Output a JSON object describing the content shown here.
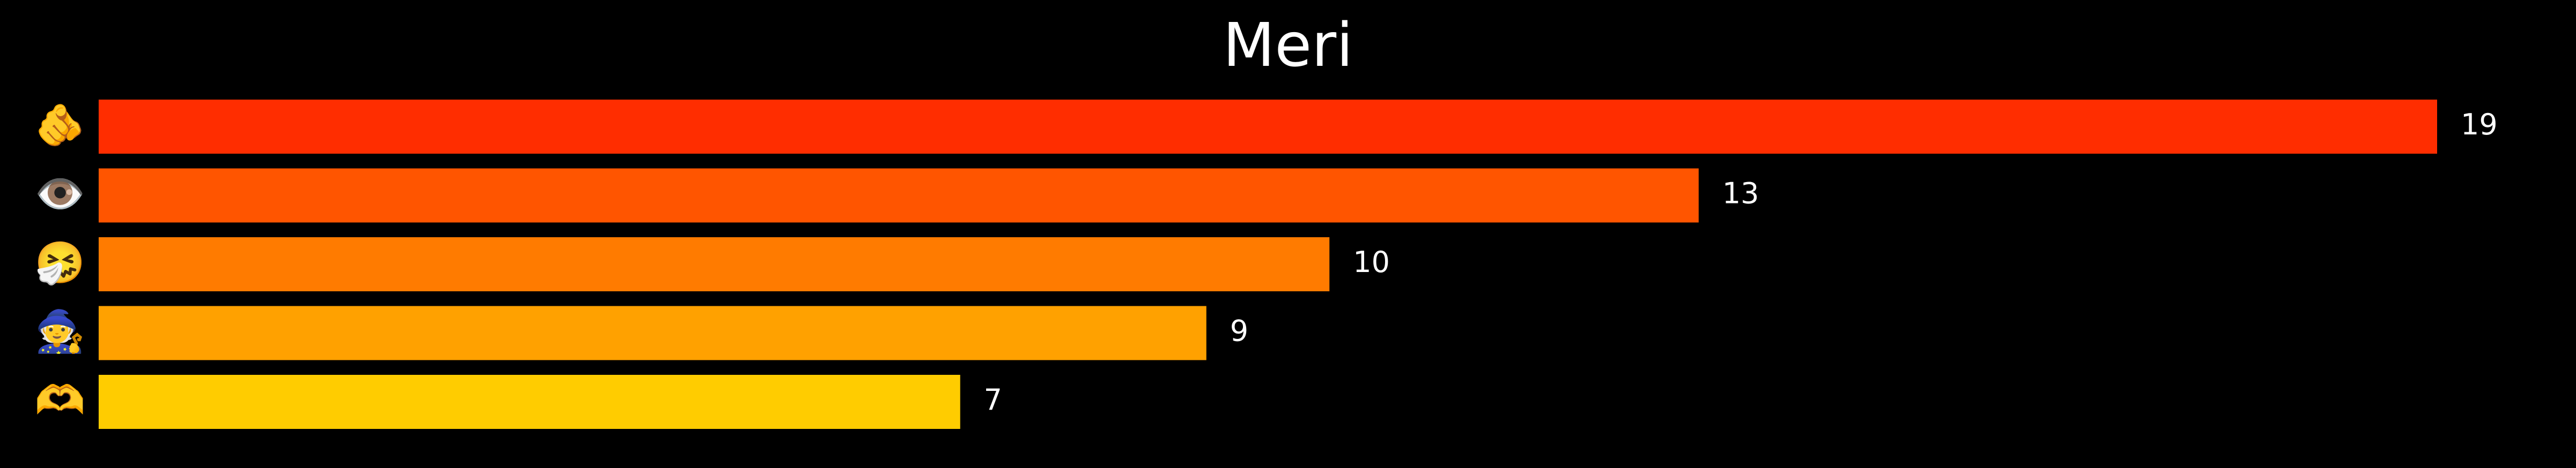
{
  "chart_data": {
    "type": "bar",
    "orientation": "horizontal",
    "title": "Meri",
    "categories": [
      "🫵",
      "👁️",
      "🤧",
      "🧙",
      "🫶"
    ],
    "values": [
      19,
      13,
      10,
      9,
      7
    ],
    "colors": [
      "#ff2d00",
      "#ff5500",
      "#ff7b00",
      "#ffa100",
      "#ffcc00"
    ],
    "xlabel": "",
    "ylabel": "",
    "grid": false,
    "background": "#000000",
    "text_color": "#ffffff"
  }
}
